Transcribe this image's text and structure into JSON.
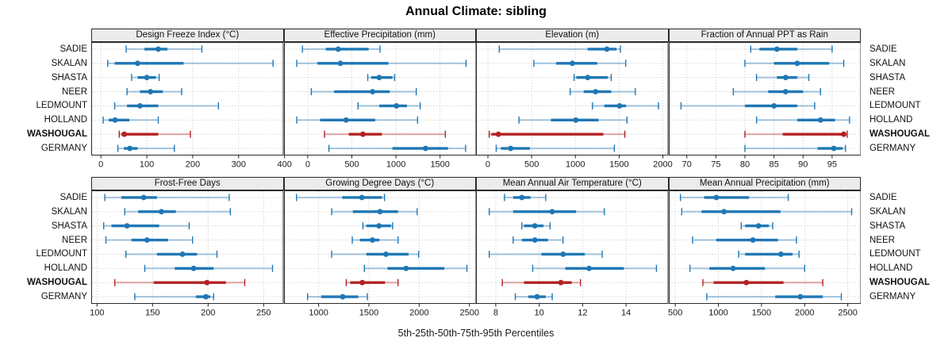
{
  "title": "Annual Climate: sibling",
  "caption": "5th-25th-50th-75th-95th Percentiles",
  "sites": [
    "SADIE",
    "SKALAN",
    "SHASTA",
    "NEER",
    "LEDMOUNT",
    "HOLLAND",
    "WASHOUGAL",
    "GERMANY"
  ],
  "highlight_site": "WASHOUGAL",
  "percentile_labels": [
    "5th",
    "25th",
    "50th",
    "75th",
    "95th"
  ],
  "colors": {
    "normal": "#1f77b4",
    "normal_light": "rgba(31,119,180,0.38)",
    "highlight": "#b22222",
    "highlight_light": "rgba(178,34,34,0.38)",
    "strip_bg": "#ececec",
    "panel_border": "#2a2a2a",
    "grid": "#bdbdbd",
    "tick_text": "#1a1a1a"
  },
  "chart_data": {
    "type": "dotplot-trellis",
    "layout": {
      "rows": 2,
      "cols": 4,
      "grid": "dotted",
      "legend_position": "none"
    },
    "note": "Each bar: thin light line = 5th-95th percentile with end caps, thick line = 25th-75th, dot = 50th (median). Values per site are [p5,p25,p50,p75,p95].",
    "panels": [
      {
        "row": 0,
        "col": 0,
        "title": "Design Freeze Index (°C)",
        "ticks": [
          0,
          100,
          200,
          300,
          400
        ],
        "domain": [
          -21,
          398
        ],
        "series": {
          "SADIE": [
            55,
            95,
            125,
            145,
            220
          ],
          "SKALAN": [
            15,
            30,
            80,
            180,
            375
          ],
          "SHASTA": [
            67,
            80,
            100,
            120,
            127
          ],
          "NEER": [
            57,
            85,
            108,
            135,
            176
          ],
          "LEDMOUNT": [
            30,
            57,
            85,
            125,
            256
          ],
          "HOLLAND": [
            5,
            17,
            31,
            62,
            125
          ],
          "WASHOUGAL": [
            40,
            45,
            51,
            125,
            195
          ],
          "GERMANY": [
            37,
            50,
            63,
            80,
            160
          ]
        }
      },
      {
        "row": 0,
        "col": 1,
        "title": "Effective Precipitation (mm)",
        "ticks": [
          0,
          500,
          1000,
          1500
        ],
        "domain": [
          -269,
          1912
        ],
        "series": {
          "SADIE": [
            -60,
            205,
            345,
            690,
            820
          ],
          "SKALAN": [
            -125,
            110,
            370,
            915,
            1795
          ],
          "SHASTA": [
            680,
            720,
            810,
            960,
            985
          ],
          "NEER": [
            40,
            300,
            735,
            930,
            1230
          ],
          "LEDMOUNT": [
            570,
            810,
            1005,
            1125,
            1275
          ],
          "HOLLAND": [
            -125,
            140,
            435,
            765,
            1245
          ],
          "WASHOUGAL": [
            190,
            465,
            625,
            840,
            1560
          ],
          "GERMANY": [
            240,
            960,
            1335,
            1590,
            1790
          ]
        }
      },
      {
        "row": 0,
        "col": 2,
        "title": "Elevation (m)",
        "ticks": [
          0,
          500,
          1000,
          1500,
          2000
        ],
        "domain": [
          -136,
          2063
        ],
        "series": {
          "SADIE": [
            130,
            1140,
            1360,
            1470,
            1515
          ],
          "SKALAN": [
            525,
            780,
            965,
            1250,
            1575
          ],
          "SHASTA": [
            985,
            1010,
            1140,
            1370,
            1410
          ],
          "NEER": [
            940,
            1095,
            1230,
            1410,
            1685
          ],
          "LEDMOUNT": [
            1195,
            1330,
            1505,
            1580,
            1950
          ],
          "HOLLAND": [
            355,
            720,
            1005,
            1265,
            1590
          ],
          "WASHOUGAL": [
            15,
            40,
            120,
            1320,
            1565
          ],
          "GERMANY": [
            95,
            150,
            260,
            480,
            1445
          ]
        }
      },
      {
        "row": 0,
        "col": 3,
        "title": "Fraction of Annual PPT as Rain",
        "ticks": [
          70,
          75,
          80,
          85,
          90,
          95
        ],
        "domain": [
          66.9,
          100
        ],
        "series": {
          "SADIE": [
            81,
            82.5,
            85.5,
            89,
            95
          ],
          "SKALAN": [
            80,
            85,
            89,
            94.5,
            97
          ],
          "SHASTA": [
            82,
            85.5,
            87,
            89,
            91
          ],
          "NEER": [
            78,
            84,
            87,
            90,
            93
          ],
          "LEDMOUNT": [
            69,
            80,
            85,
            89,
            92
          ],
          "HOLLAND": [
            82,
            89,
            93,
            95.5,
            98
          ],
          "WASHOUGAL": [
            80,
            86.5,
            97,
            97.2,
            97.6
          ],
          "GERMANY": [
            80,
            92.5,
            95.3,
            96.8,
            97.3
          ]
        }
      },
      {
        "row": 1,
        "col": 0,
        "title": "Frost-Free Days",
        "ticks": [
          100,
          150,
          200,
          250
        ],
        "domain": [
          94.8,
          268
        ],
        "series": {
          "SADIE": [
            107,
            122,
            142,
            154,
            219
          ],
          "SKALAN": [
            125,
            137,
            158,
            171,
            220
          ],
          "SHASTA": [
            106,
            113,
            127,
            156,
            183
          ],
          "NEER": [
            108,
            131,
            145,
            164,
            186
          ],
          "LEDMOUNT": [
            126,
            154,
            177,
            190,
            208
          ],
          "HOLLAND": [
            143,
            170,
            187,
            205,
            258
          ],
          "WASHOUGAL": [
            116,
            151,
            199,
            216,
            233
          ],
          "GERMANY": [
            134,
            189,
            198,
            202,
            205
          ]
        }
      },
      {
        "row": 1,
        "col": 1,
        "title": "Growing Degree Days (°C)",
        "ticks": [
          1000,
          1500,
          2000,
          2500
        ],
        "domain": [
          656,
          2569
        ],
        "series": {
          "SADIE": [
            780,
            1235,
            1430,
            1630,
            1655
          ],
          "SKALAN": [
            1130,
            1340,
            1610,
            1790,
            1980
          ],
          "SHASTA": [
            1440,
            1475,
            1600,
            1720,
            1735
          ],
          "NEER": [
            1335,
            1410,
            1535,
            1605,
            1790
          ],
          "LEDMOUNT": [
            1130,
            1475,
            1670,
            1895,
            1995
          ],
          "HOLLAND": [
            1455,
            1685,
            1870,
            2250,
            2475
          ],
          "WASHOUGAL": [
            1275,
            1315,
            1435,
            1660,
            1790
          ],
          "GERMANY": [
            890,
            1025,
            1240,
            1395,
            1485
          ]
        }
      },
      {
        "row": 1,
        "col": 2,
        "title": "Mean Annual Air Temperature (°C)",
        "ticks": [
          8,
          10,
          12,
          14
        ],
        "domain": [
          7.09,
          15.95
        ],
        "series": {
          "SADIE": [
            8.4,
            8.8,
            9.2,
            9.6,
            10.3
          ],
          "SKALAN": [
            7.7,
            8.8,
            10.6,
            11.7,
            13.0
          ],
          "SHASTA": [
            9.2,
            9.3,
            9.8,
            10.2,
            10.5
          ],
          "NEER": [
            8.8,
            9.2,
            9.8,
            10.4,
            11.1
          ],
          "LEDMOUNT": [
            7.7,
            10.1,
            11.1,
            12.1,
            12.9
          ],
          "HOLLAND": [
            9.7,
            11.2,
            12.3,
            13.9,
            15.4
          ],
          "WASHOUGAL": [
            8.3,
            9.3,
            11.0,
            11.5,
            11.9
          ],
          "GERMANY": [
            8.9,
            9.5,
            9.9,
            10.3,
            10.6
          ]
        }
      },
      {
        "row": 1,
        "col": 3,
        "title": "Mean Annual Precipitation (mm)",
        "ticks": [
          500,
          1000,
          1500,
          2000,
          2500
        ],
        "domain": [
          425,
          2655
        ],
        "series": {
          "SADIE": [
            560,
            835,
            975,
            1355,
            1810
          ],
          "SKALAN": [
            575,
            805,
            1065,
            1720,
            2545
          ],
          "SHASTA": [
            1265,
            1310,
            1465,
            1585,
            1630
          ],
          "NEER": [
            700,
            975,
            1400,
            1690,
            1905
          ],
          "LEDMOUNT": [
            1235,
            1310,
            1725,
            1860,
            1935
          ],
          "HOLLAND": [
            670,
            895,
            1170,
            1540,
            2000
          ],
          "WASHOUGAL": [
            820,
            945,
            1325,
            1755,
            2210
          ],
          "GERMANY": [
            865,
            1660,
            1950,
            2210,
            2425
          ]
        }
      }
    ]
  }
}
